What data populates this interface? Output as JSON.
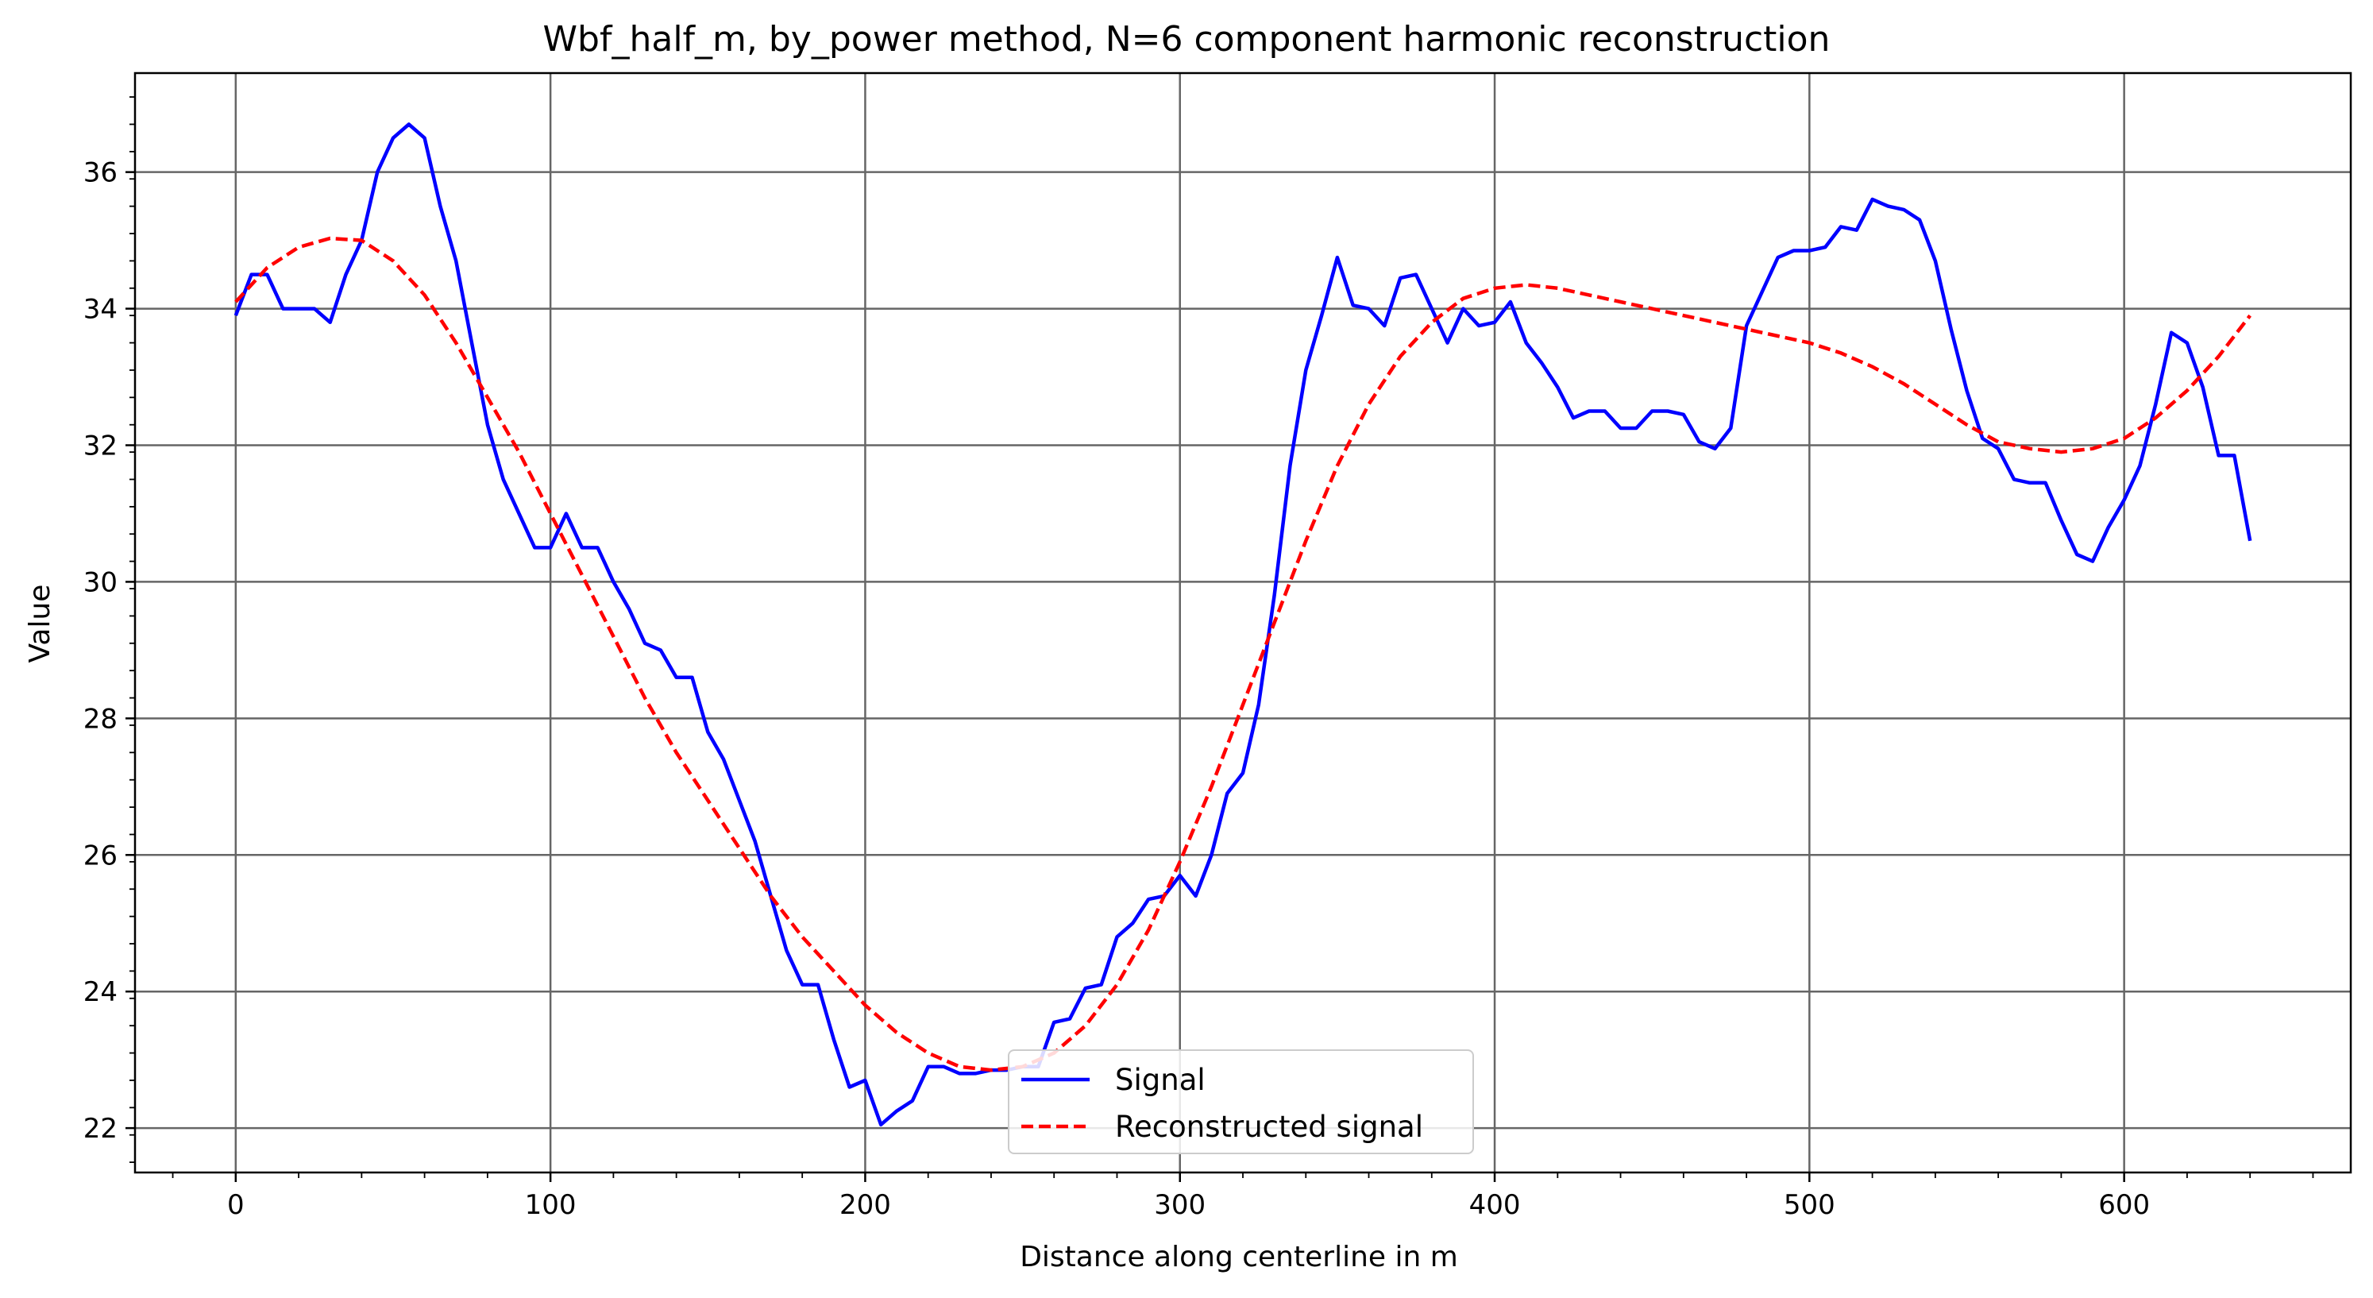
{
  "chart_data": {
    "type": "line",
    "title": "Wbf_half_m, by_power method, N=6 component harmonic reconstruction",
    "xlabel": "Distance along centerline in m",
    "ylabel": "Value",
    "xlim": [
      -32,
      672
    ],
    "ylim": [
      21.35,
      37.45
    ],
    "x_ticks": [
      0,
      100,
      200,
      300,
      400,
      500,
      600
    ],
    "x_tick_labels": [
      "0",
      "100",
      "200",
      "300",
      "400",
      "500",
      "600"
    ],
    "y_ticks": [
      22,
      24,
      26,
      28,
      30,
      32,
      34,
      36
    ],
    "y_tick_labels": [
      "22",
      "24",
      "26",
      "28",
      "30",
      "32",
      "34",
      "36"
    ],
    "grid": true,
    "legend_position": "bottom-center",
    "colors": {
      "signal": "#0000ff",
      "reconstructed": "#ff0000",
      "grid": "#666666"
    },
    "series": [
      {
        "name": "Signal",
        "style": "solid",
        "x": [
          0,
          5,
          10,
          15,
          20,
          25,
          30,
          35,
          40,
          45,
          50,
          55,
          60,
          65,
          70,
          75,
          80,
          85,
          90,
          95,
          100,
          105,
          110,
          115,
          120,
          125,
          130,
          135,
          140,
          145,
          150,
          155,
          160,
          165,
          170,
          175,
          180,
          185,
          190,
          195,
          200,
          205,
          210,
          215,
          220,
          225,
          230,
          235,
          240,
          245,
          250,
          255,
          260,
          265,
          270,
          275,
          280,
          285,
          290,
          295,
          300,
          305,
          310,
          315,
          320,
          325,
          330,
          335,
          340,
          345,
          350,
          355,
          360,
          365,
          370,
          375,
          380,
          385,
          390,
          395,
          400,
          405,
          410,
          415,
          420,
          425,
          430,
          435,
          440,
          445,
          450,
          455,
          460,
          465,
          470,
          475,
          480,
          485,
          490,
          495,
          500,
          505,
          510,
          515,
          520,
          525,
          530,
          535,
          540,
          545,
          550,
          555,
          560,
          565,
          570,
          575,
          580,
          585,
          590,
          595,
          600,
          605,
          610,
          615,
          620,
          625,
          630,
          635,
          640
        ],
        "y": [
          33.9,
          34.5,
          34.5,
          34.0,
          34.0,
          34.0,
          33.8,
          34.5,
          35.0,
          36.0,
          36.5,
          36.7,
          36.5,
          35.5,
          34.7,
          33.5,
          32.3,
          31.5,
          31.0,
          30.5,
          30.5,
          31.0,
          30.5,
          30.5,
          30.0,
          29.6,
          29.1,
          29.0,
          28.6,
          28.6,
          27.8,
          27.4,
          26.8,
          26.2,
          25.4,
          24.6,
          24.1,
          24.1,
          23.3,
          22.6,
          22.7,
          22.05,
          22.25,
          22.4,
          22.9,
          22.9,
          22.8,
          22.8,
          22.85,
          22.85,
          22.9,
          22.9,
          23.55,
          23.6,
          24.05,
          24.1,
          24.8,
          25.0,
          25.35,
          25.4,
          25.7,
          25.4,
          26.0,
          26.9,
          27.2,
          28.2,
          29.8,
          31.7,
          33.1,
          33.9,
          34.75,
          34.05,
          34.0,
          33.75,
          34.45,
          34.5,
          34.0,
          33.5,
          34.0,
          33.75,
          33.8,
          34.1,
          33.5,
          33.2,
          32.85,
          32.4,
          32.5,
          32.5,
          32.25,
          32.25,
          32.5,
          32.5,
          32.45,
          32.05,
          31.95,
          32.25,
          33.75,
          34.25,
          34.75,
          34.85,
          34.85,
          34.9,
          35.2,
          35.15,
          35.6,
          35.5,
          35.45,
          35.3,
          34.7,
          33.7,
          32.8,
          32.1,
          31.95,
          31.5,
          31.45,
          31.45,
          30.9,
          30.4,
          30.3,
          30.8,
          31.2,
          31.7,
          32.6,
          33.65,
          33.5,
          32.85,
          31.85,
          31.85,
          30.6
        ]
      },
      {
        "name": "Reconstructed signal",
        "style": "dashed",
        "x": [
          0,
          10,
          20,
          30,
          40,
          50,
          60,
          70,
          80,
          90,
          100,
          110,
          120,
          130,
          140,
          150,
          160,
          170,
          180,
          190,
          200,
          210,
          220,
          230,
          240,
          250,
          260,
          270,
          280,
          290,
          300,
          310,
          320,
          330,
          340,
          350,
          360,
          370,
          380,
          390,
          400,
          410,
          420,
          430,
          440,
          450,
          460,
          470,
          480,
          490,
          500,
          510,
          520,
          530,
          540,
          550,
          560,
          570,
          580,
          590,
          600,
          610,
          620,
          630,
          640
        ],
        "y": [
          34.1,
          34.6,
          34.9,
          35.03,
          35.0,
          34.7,
          34.2,
          33.5,
          32.7,
          31.9,
          31.0,
          30.1,
          29.2,
          28.3,
          27.5,
          26.8,
          26.1,
          25.4,
          24.8,
          24.3,
          23.8,
          23.4,
          23.1,
          22.9,
          22.85,
          22.9,
          23.1,
          23.5,
          24.1,
          24.9,
          25.9,
          27.0,
          28.2,
          29.4,
          30.6,
          31.7,
          32.6,
          33.3,
          33.8,
          34.15,
          34.3,
          34.35,
          34.3,
          34.2,
          34.1,
          34.0,
          33.9,
          33.8,
          33.7,
          33.6,
          33.5,
          33.35,
          33.15,
          32.9,
          32.6,
          32.3,
          32.05,
          31.95,
          31.9,
          31.95,
          32.1,
          32.4,
          32.8,
          33.3,
          33.9
        ]
      }
    ]
  }
}
